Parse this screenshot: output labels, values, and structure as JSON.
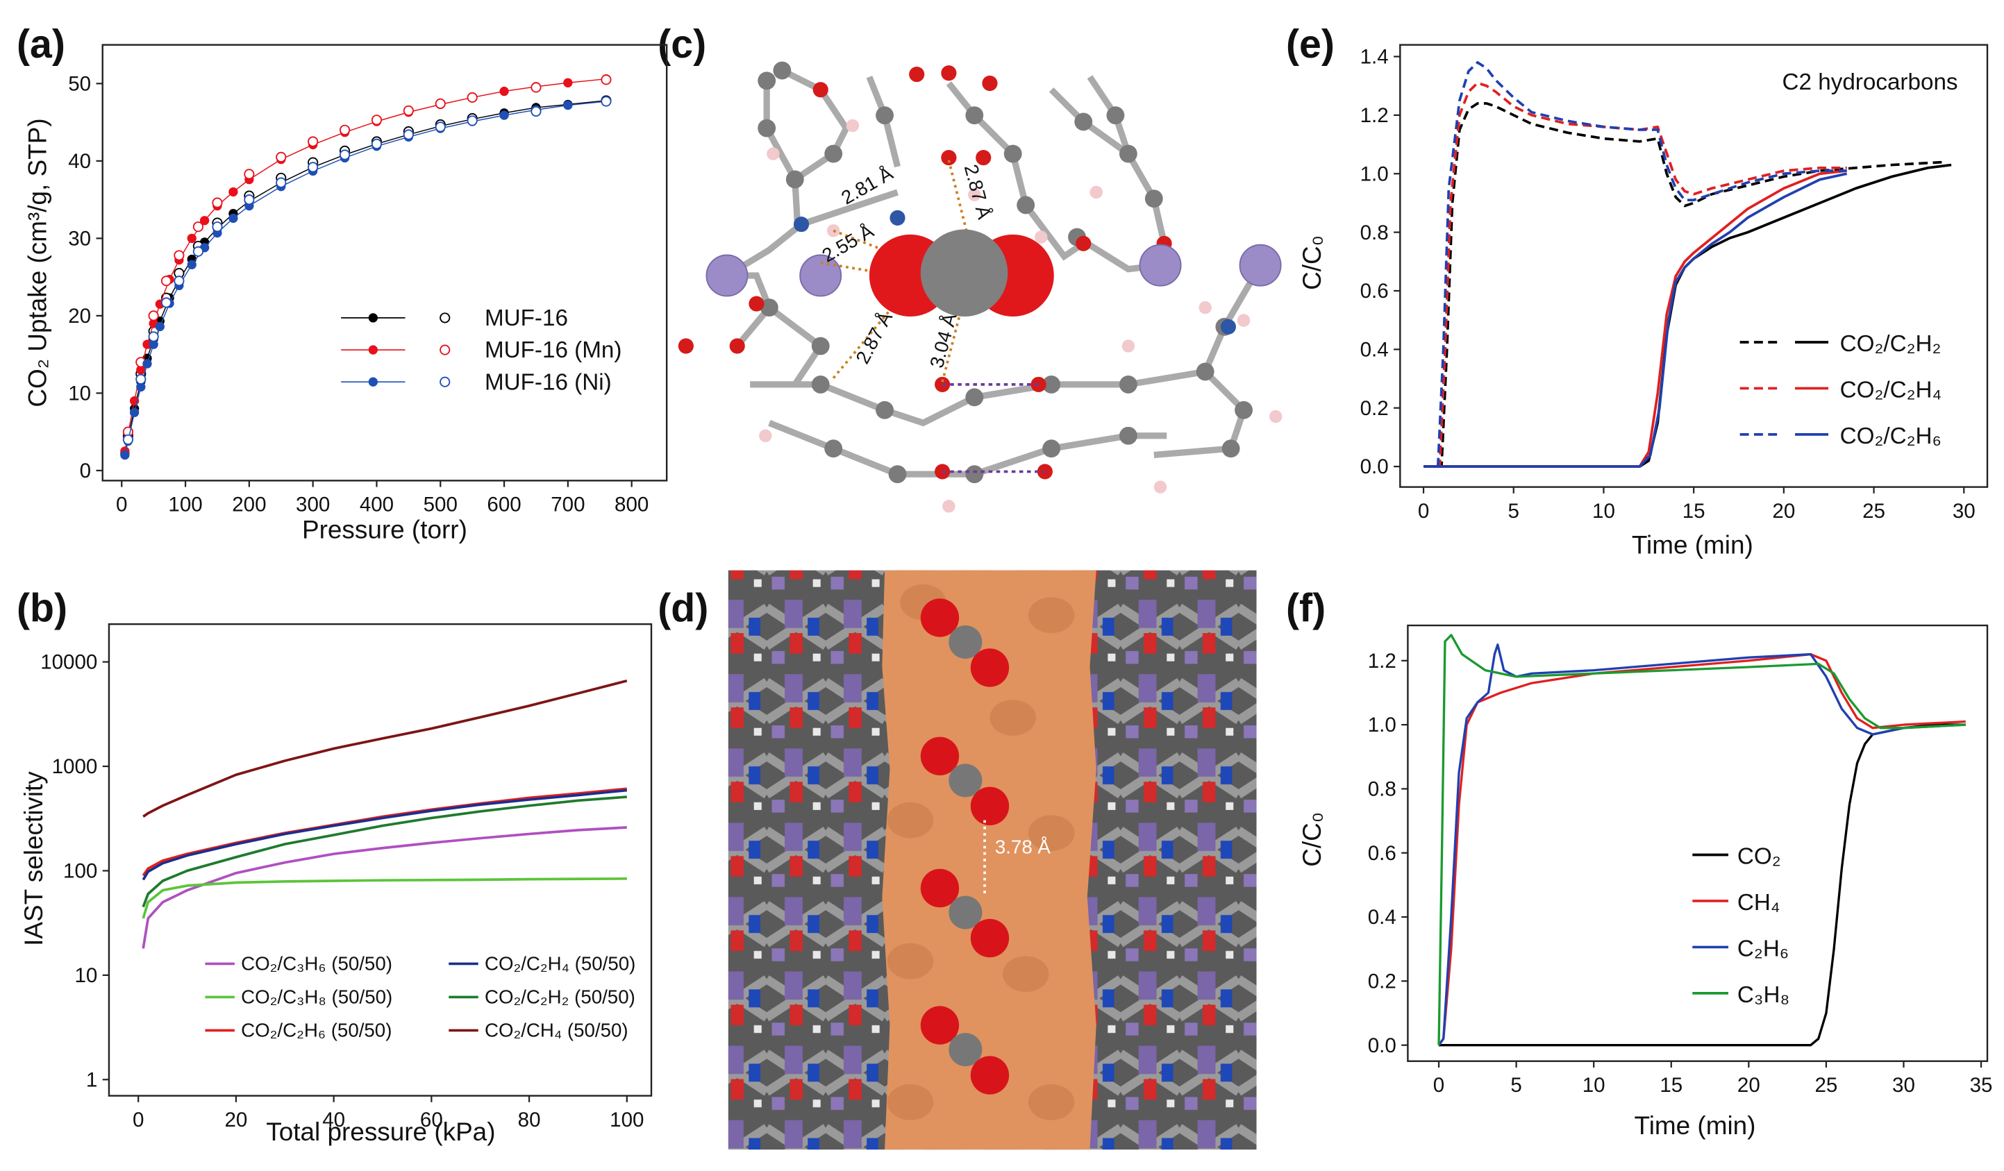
{
  "chart_data": [
    {
      "type": "scatter",
      "label": "(a)",
      "x_label": "Pressure (torr)",
      "y_label": "CO₂ Uptake (cm³/g, STP)",
      "xlim": [
        -30,
        855
      ],
      "ylim": [
        -1.3,
        55
      ],
      "xticks": [
        0,
        100,
        200,
        300,
        400,
        500,
        600,
        700,
        800
      ],
      "yticks": [
        0,
        10,
        20,
        30,
        40,
        50
      ],
      "series": [
        {
          "name": "MUF-16",
          "color": "#000000",
          "x": [
            5,
            10,
            20,
            30,
            40,
            50,
            60,
            75,
            90,
            110,
            130,
            150,
            175,
            200,
            250,
            300,
            350,
            400,
            450,
            500,
            550,
            600,
            650,
            700,
            760
          ],
          "values": [
            2.2,
            4.2,
            8,
            11.5,
            14.5,
            17,
            19.3,
            22.3,
            24.6,
            27.3,
            29.5,
            31.3,
            33.2,
            34.8,
            37.2,
            39.2,
            40.8,
            42.2,
            43.4,
            44.5,
            45.4,
            46.2,
            46.9,
            47.3,
            47.8
          ],
          "desorption_x": [
            760,
            650,
            550,
            500,
            450,
            400,
            350,
            300,
            250,
            200,
            150,
            120,
            90,
            70,
            50,
            30,
            10
          ],
          "desorption_values": [
            47.8,
            46.5,
            45.5,
            44.7,
            43.8,
            42.5,
            41.3,
            39.8,
            37.8,
            35.5,
            32,
            29,
            25.5,
            22.3,
            18,
            12.5,
            4.5
          ]
        },
        {
          "name": "MUF-16 (Mn)",
          "color": "#e8101a",
          "x": [
            5,
            10,
            20,
            30,
            40,
            50,
            60,
            75,
            90,
            110,
            130,
            150,
            175,
            200,
            250,
            300,
            350,
            400,
            450,
            500,
            550,
            600,
            650,
            700,
            760
          ],
          "values": [
            2.5,
            4.8,
            9,
            13,
            16.3,
            19,
            21.5,
            24.7,
            27.2,
            30,
            32.3,
            34.2,
            36,
            37.6,
            40.2,
            42.1,
            43.7,
            45.1,
            46.3,
            47.3,
            48.2,
            49,
            49.6,
            50.1,
            50.6
          ],
          "desorption_x": [
            760,
            650,
            550,
            500,
            450,
            400,
            350,
            300,
            250,
            200,
            150,
            120,
            90,
            70,
            50,
            30,
            10
          ],
          "desorption_values": [
            50.5,
            49.5,
            48.2,
            47.4,
            46.5,
            45.3,
            44,
            42.5,
            40.5,
            38.3,
            34.6,
            31.5,
            27.8,
            24.5,
            20,
            14,
            5
          ]
        },
        {
          "name": "MUF-16 (Ni)",
          "color": "#1f4fb5",
          "x": [
            5,
            10,
            20,
            30,
            40,
            50,
            60,
            75,
            90,
            110,
            130,
            150,
            175,
            200,
            250,
            300,
            350,
            400,
            450,
            500,
            550,
            600,
            650,
            700,
            760
          ],
          "values": [
            2,
            3.8,
            7.5,
            10.8,
            13.8,
            16.3,
            18.6,
            21.6,
            23.9,
            26.6,
            28.8,
            30.7,
            32.6,
            34.2,
            36.7,
            38.7,
            40.4,
            41.9,
            43.1,
            44.2,
            45.1,
            45.9,
            46.6,
            47.2,
            47.7
          ],
          "desorption_x": [
            760,
            650,
            550,
            500,
            450,
            400,
            350,
            300,
            250,
            200,
            150,
            120,
            90,
            70,
            50,
            30,
            10
          ],
          "desorption_values": [
            47.7,
            46.4,
            45.2,
            44.4,
            43.4,
            42.2,
            40.8,
            39.2,
            37.2,
            35,
            31.5,
            28.3,
            24.5,
            21.7,
            17.3,
            11.8,
            4
          ]
        }
      ]
    },
    {
      "type": "line",
      "label": "(b)",
      "x_label": "Total pressure (kPa)",
      "y_label": "IAST selectivity",
      "y_scale": "log",
      "xlim": [
        -6,
        105
      ],
      "ylim": [
        0.7,
        23000
      ],
      "xticks": [
        0,
        20,
        40,
        60,
        80,
        100
      ],
      "yticks": [
        1,
        10,
        100,
        1000,
        10000
      ],
      "x": [
        1,
        2,
        5,
        10,
        20,
        30,
        40,
        50,
        60,
        70,
        80,
        90,
        100
      ],
      "series": [
        {
          "name": "CO₂/C₃H₆ (50/50)",
          "color": "#b04fc0",
          "values": [
            18,
            35,
            50,
            65,
            95,
            120,
            145,
            165,
            185,
            205,
            225,
            245,
            260
          ]
        },
        {
          "name": "CO₂/C₃H₈ (50/50)",
          "color": "#5cc43a",
          "values": [
            35,
            50,
            65,
            72,
            77,
            79,
            80,
            81,
            81.5,
            82,
            83,
            83.5,
            84
          ]
        },
        {
          "name": "CO₂/C₂H₆ (50/50)",
          "color": "#e0201e",
          "values": [
            90,
            105,
            125,
            145,
            185,
            230,
            275,
            330,
            385,
            440,
            500,
            550,
            610
          ]
        },
        {
          "name": "CO₂/C₂H₄ (50/50)",
          "color": "#1a2e8f",
          "values": [
            82,
            98,
            118,
            140,
            180,
            225,
            270,
            320,
            375,
            430,
            480,
            530,
            590
          ]
        },
        {
          "name": "CO₂/C₂H₂ (50/50)",
          "color": "#1f7a2e",
          "values": [
            45,
            60,
            80,
            100,
            135,
            180,
            220,
            270,
            320,
            370,
            420,
            470,
            510
          ]
        },
        {
          "name": "CO₂/CH₄ (50/50)",
          "color": "#7d1515",
          "values": [
            330,
            355,
            420,
            530,
            830,
            1130,
            1480,
            1850,
            2300,
            2950,
            3800,
            5000,
            6600
          ]
        }
      ]
    },
    {
      "type": "line",
      "label": "(e)",
      "x_label": "Time (min)",
      "y_label": "C/C₀",
      "annotation": "C2 hydrocarbons",
      "xlim": [
        -1.3,
        31.3
      ],
      "ylim": [
        -0.07,
        1.44
      ],
      "xticks": [
        0,
        5,
        10,
        15,
        20,
        25,
        30
      ],
      "yticks": [
        {
          "value": 0,
          "label": "0.0"
        },
        {
          "value": 0.2,
          "label": "0.2"
        },
        {
          "value": 0.4,
          "label": "0.4"
        },
        {
          "value": 0.6,
          "label": "0.6"
        },
        {
          "value": 0.8,
          "label": "0.8"
        },
        {
          "value": 1,
          "label": "1.0"
        },
        {
          "value": 1.2,
          "label": "1.2"
        },
        {
          "value": 1.4,
          "label": "1.4"
        }
      ],
      "series": [
        {
          "name": "CO₂/C₂H₂",
          "color": "#000000",
          "dashed": {
            "x": [
              0,
              1.0,
              1.3,
              1.6,
              2,
              2.5,
              3,
              3.5,
              4,
              5,
              6,
              8,
              10,
              12,
              13,
              13.5,
              14,
              14.5,
              15,
              16,
              18,
              20,
              22,
              24,
              26,
              29
            ],
            "values": [
              0,
              0,
              0.4,
              0.9,
              1.15,
              1.22,
              1.24,
              1.24,
              1.23,
              1.2,
              1.17,
              1.14,
              1.12,
              1.11,
              1.12,
              1.0,
              0.92,
              0.89,
              0.9,
              0.93,
              0.96,
              0.99,
              1.01,
              1.02,
              1.03,
              1.04
            ]
          },
          "solid": {
            "x": [
              0,
              12,
              12.5,
              13,
              13.5,
              14,
              14.5,
              15,
              16,
              17,
              18,
              20,
              22,
              24,
              26,
              28,
              29.3
            ],
            "values": [
              0,
              0,
              0.02,
              0.15,
              0.45,
              0.62,
              0.68,
              0.71,
              0.75,
              0.78,
              0.8,
              0.85,
              0.9,
              0.95,
              0.99,
              1.02,
              1.03
            ]
          }
        },
        {
          "name": "CO₂/C₂H₄",
          "color": "#e02020",
          "dashed": {
            "x": [
              0,
              0.9,
              1.2,
              1.5,
              2,
              2.5,
              3,
              3.5,
              4,
              5,
              6,
              8,
              10,
              12,
              13,
              13.5,
              14,
              14.5,
              15,
              16,
              18,
              20,
              22,
              23.5
            ],
            "values": [
              0,
              0,
              0.4,
              0.9,
              1.2,
              1.28,
              1.31,
              1.3,
              1.28,
              1.23,
              1.2,
              1.17,
              1.16,
              1.15,
              1.16,
              1.07,
              0.98,
              0.94,
              0.93,
              0.95,
              0.98,
              1.01,
              1.02,
              1.02
            ]
          },
          "solid": {
            "x": [
              0,
              12,
              12.5,
              13,
              13.5,
              14,
              14.5,
              15,
              16,
              17,
              18,
              20,
              22,
              23.5
            ],
            "values": [
              0,
              0,
              0.05,
              0.25,
              0.52,
              0.65,
              0.7,
              0.73,
              0.78,
              0.83,
              0.88,
              0.95,
              1.0,
              1.01
            ]
          }
        },
        {
          "name": "CO₂/C₂H₆",
          "color": "#2040b0",
          "dashed": {
            "x": [
              0,
              0.8,
              1.1,
              1.4,
              2,
              2.5,
              3,
              3.5,
              4,
              5,
              6,
              8,
              10,
              12,
              13,
              13.5,
              14,
              14.5,
              15,
              16,
              18,
              20,
              22,
              23.5
            ],
            "values": [
              0,
              0,
              0.4,
              0.95,
              1.25,
              1.35,
              1.38,
              1.36,
              1.32,
              1.26,
              1.21,
              1.18,
              1.16,
              1.15,
              1.15,
              1.03,
              0.95,
              0.91,
              0.91,
              0.93,
              0.97,
              1.0,
              1.01,
              1.01
            ]
          },
          "solid": {
            "x": [
              0,
              12,
              12.6,
              13.1,
              13.6,
              14,
              14.5,
              15,
              16,
              17,
              18,
              20,
              22,
              23.5
            ],
            "values": [
              0,
              0,
              0.04,
              0.2,
              0.5,
              0.63,
              0.68,
              0.71,
              0.76,
              0.8,
              0.85,
              0.92,
              0.98,
              1.0
            ]
          }
        }
      ]
    },
    {
      "type": "line",
      "label": "(f)",
      "x_label": "Time (min)",
      "y_label": "C/C₀",
      "xlim": [
        -2,
        35.4
      ],
      "ylim": [
        -0.05,
        1.31
      ],
      "xticks": [
        0,
        5,
        10,
        15,
        20,
        25,
        30,
        35
      ],
      "yticks": [
        {
          "value": 0,
          "label": "0.0"
        },
        {
          "value": 0.2,
          "label": "0.2"
        },
        {
          "value": 0.4,
          "label": "0.4"
        },
        {
          "value": 0.6,
          "label": "0.6"
        },
        {
          "value": 0.8,
          "label": "0.8"
        },
        {
          "value": 1,
          "label": "1.0"
        },
        {
          "value": 1.2,
          "label": "1.2"
        }
      ],
      "series": [
        {
          "name": "CO₂",
          "color": "#000000",
          "x": [
            0,
            24,
            24.5,
            25,
            25.5,
            26,
            26.5,
            27,
            27.5,
            28,
            29,
            30,
            32,
            34
          ],
          "values": [
            0,
            0,
            0.02,
            0.1,
            0.3,
            0.55,
            0.75,
            0.88,
            0.94,
            0.97,
            0.98,
            0.99,
            1.0,
            1.0
          ]
        },
        {
          "name": "CH₄",
          "color": "#e02020",
          "x": [
            0,
            0.3,
            0.8,
            1.3,
            1.8,
            2.5,
            3,
            4,
            6,
            10,
            15,
            20,
            24,
            25,
            26,
            27,
            28,
            30,
            34
          ],
          "values": [
            0,
            0.02,
            0.3,
            0.75,
            1.0,
            1.07,
            1.08,
            1.1,
            1.13,
            1.16,
            1.18,
            1.2,
            1.22,
            1.2,
            1.1,
            1.02,
            0.99,
            1.0,
            1.01
          ]
        },
        {
          "name": "C₂H₆",
          "color": "#2040b0",
          "x": [
            0,
            0.3,
            0.8,
            1.3,
            1.8,
            2.5,
            3.2,
            3.6,
            3.8,
            4.2,
            5,
            6,
            10,
            15,
            20,
            24,
            25,
            26,
            27,
            28,
            30,
            34
          ],
          "values": [
            0,
            0.02,
            0.4,
            0.85,
            1.02,
            1.07,
            1.1,
            1.22,
            1.25,
            1.17,
            1.15,
            1.16,
            1.17,
            1.19,
            1.21,
            1.22,
            1.15,
            1.05,
            0.99,
            0.97,
            0.99,
            1.0
          ]
        },
        {
          "name": "C₃H₈",
          "color": "#1a9a30",
          "x": [
            0,
            0.2,
            0.4,
            0.8,
            1.5,
            3,
            5,
            10,
            15,
            20,
            24.5,
            25.5,
            26.5,
            27.5,
            28.5,
            30,
            34
          ],
          "values": [
            0,
            0.6,
            1.26,
            1.28,
            1.22,
            1.17,
            1.15,
            1.16,
            1.17,
            1.18,
            1.19,
            1.16,
            1.08,
            1.02,
            0.99,
            0.99,
            1.0
          ]
        }
      ]
    }
  ],
  "structure_c": {
    "label": "(c)",
    "distances": [
      "2.81 Å",
      "2.87 Å",
      "2.55 Å",
      "2.87 Å",
      "3.04 Å"
    ]
  },
  "structure_d": {
    "label": "(d)",
    "distance": "3.78 Å"
  }
}
